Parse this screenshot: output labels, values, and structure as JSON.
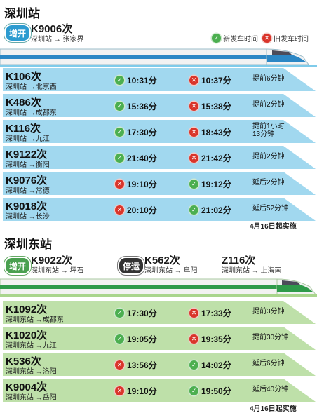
{
  "section1": {
    "title": "深圳站",
    "added": {
      "badge": "增开",
      "number": "K9006次",
      "route": "深圳站 → 张家界"
    },
    "legend": {
      "new": "新发车时间",
      "old": "旧发车时间"
    },
    "rows": [
      {
        "number": "K106次",
        "route": "深圳站 →北京西",
        "time1": "10:31分",
        "time1_status": "new",
        "time2": "10:37分",
        "time2_status": "old",
        "note": [
          "提前6分钟"
        ]
      },
      {
        "number": "K486次",
        "route": "深圳站 →成都东",
        "time1": "15:36分",
        "time1_status": "new",
        "time2": "15:38分",
        "time2_status": "old",
        "note": [
          "提前2分钟"
        ]
      },
      {
        "number": "K116次",
        "route": "深圳站 →九江",
        "time1": "17:30分",
        "time1_status": "new",
        "time2": "18:43分",
        "time2_status": "old",
        "note": [
          "提前1小时",
          "13分钟"
        ]
      },
      {
        "number": "K9122次",
        "route": "深圳站 →衡阳",
        "time1": "21:40分",
        "time1_status": "new",
        "time2": "21:42分",
        "time2_status": "old",
        "note": [
          "提前2分钟"
        ]
      },
      {
        "number": "K9076次",
        "route": "深圳站 →常德",
        "time1": "19:10分",
        "time1_status": "old",
        "time2": "19:12分",
        "time2_status": "new",
        "note": [
          "延后2分钟"
        ]
      },
      {
        "number": "K9018次",
        "route": "深圳站 →长沙",
        "time1": "20:10分",
        "time1_status": "old",
        "time2": "21:02分",
        "time2_status": "new",
        "note": [
          "延后52分钟"
        ]
      }
    ],
    "effective": "4月16日起实施",
    "colors": {
      "band": "#7fcbea",
      "band_light": "#c9e9f7"
    }
  },
  "section2": {
    "title": "深圳东站",
    "added": {
      "badge": "增开",
      "number": "K9022次",
      "route": "深圳东站 → 坪石"
    },
    "suspended": {
      "badge": "停运",
      "number": "K562次",
      "route": "深圳东站 → 阜阳"
    },
    "other": {
      "number": "Z116次",
      "route": "深圳东站 → 上海南"
    },
    "rows": [
      {
        "number": "K1092次",
        "route": "深圳东站 →成都东",
        "time1": "17:30分",
        "time1_status": "new",
        "time2": "17:33分",
        "time2_status": "old",
        "note": [
          "提前3分钟"
        ]
      },
      {
        "number": "K1020次",
        "route": "深圳东站 →九江",
        "time1": "19:05分",
        "time1_status": "new",
        "time2": "19:35分",
        "time2_status": "old",
        "note": [
          "提前30分钟"
        ]
      },
      {
        "number": "K536次",
        "route": "深圳东站 →洛阳",
        "time1": "13:56分",
        "time1_status": "old",
        "time2": "14:02分",
        "time2_status": "new",
        "note": [
          "延后6分钟"
        ]
      },
      {
        "number": "K9004次",
        "route": "深圳东站 →岳阳",
        "time1": "19:10分",
        "time1_status": "old",
        "time2": "19:50分",
        "time2_status": "new",
        "note": [
          "延后40分钟"
        ]
      }
    ],
    "effective": "4月16日起实施",
    "colors": {
      "band": "#a9d58d",
      "band_light": "#dff0d2"
    }
  }
}
